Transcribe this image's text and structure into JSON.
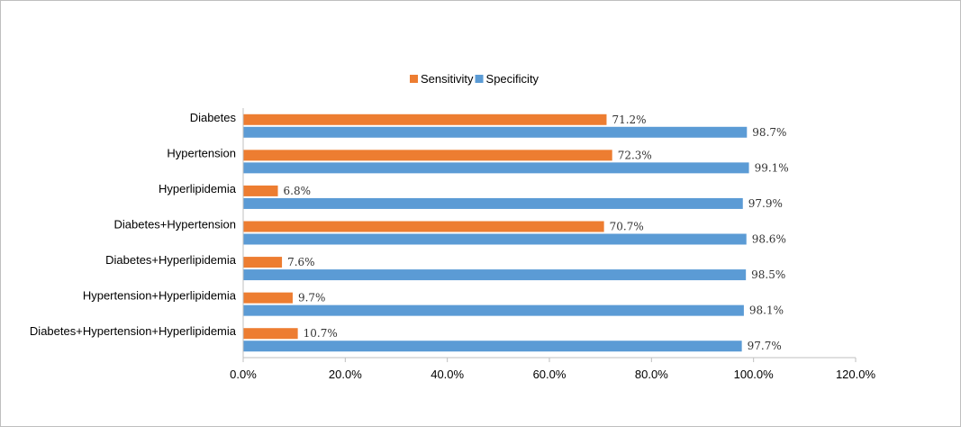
{
  "chart_data": {
    "type": "bar",
    "orientation": "horizontal",
    "categories": [
      "Diabetes",
      "Hypertension",
      "Hyperlipidemia",
      "Diabetes+Hypertension",
      "Diabetes+Hyperlipidemia",
      "Hypertension+Hyperlipidemia",
      "Diabetes+Hypertension+Hyperlipidemia"
    ],
    "series": [
      {
        "name": "Sensitivity",
        "color": "#ED7D31",
        "values": [
          71.2,
          72.3,
          6.8,
          70.7,
          7.6,
          9.7,
          10.7
        ],
        "labels": [
          "71.2%",
          "72.3%",
          "6.8%",
          "70.7%",
          "7.6%",
          "9.7%",
          "10.7%"
        ]
      },
      {
        "name": "Specificity",
        "color": "#5B9BD5",
        "values": [
          98.7,
          99.1,
          97.9,
          98.6,
          98.5,
          98.1,
          97.7
        ],
        "labels": [
          "98.7%",
          "99.1%",
          "97.9%",
          "98.6%",
          "98.5%",
          "98.1%",
          "97.7%"
        ]
      }
    ],
    "xlim": [
      0,
      120
    ],
    "xticks": [
      0,
      20,
      40,
      60,
      80,
      100,
      120
    ],
    "xtick_labels": [
      "0.0%",
      "20.0%",
      "40.0%",
      "60.0%",
      "80.0%",
      "100.0%",
      "120.0%"
    ],
    "legend_position": "top-center",
    "grid": false
  }
}
